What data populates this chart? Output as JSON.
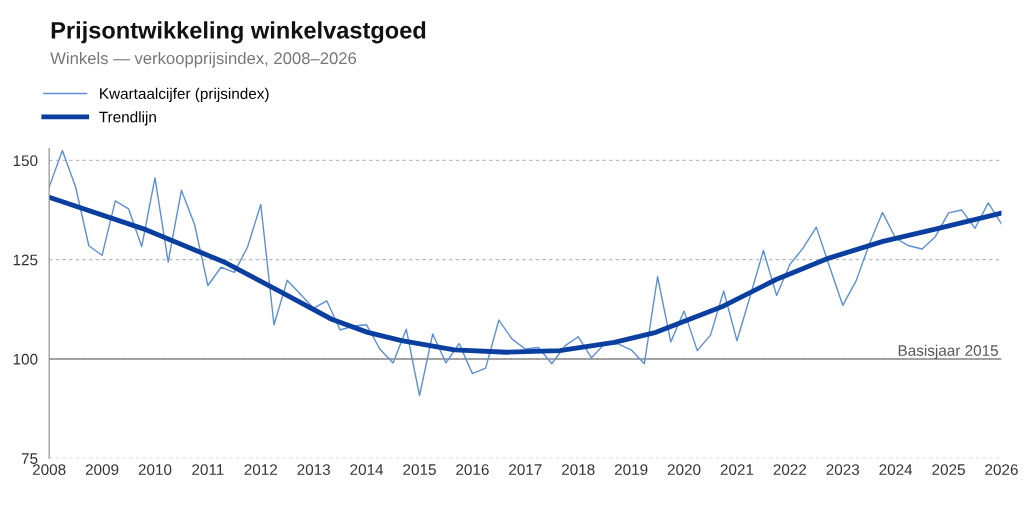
{
  "chart_data": {
    "type": "line",
    "title": "Prijsontwikkeling winkelvastgoed",
    "subtitle": "Winkels — verkoopprijsindex, 2008–2026",
    "series": [
      {
        "name": "Kwartaalcijfer (prijsindex)",
        "color": "#5b8fd6",
        "x": [
          2008,
          2008.25,
          2008.5,
          2008.75,
          2009,
          2009.25,
          2009.5,
          2009.75,
          2010,
          2010.25,
          2010.5,
          2010.75,
          2011,
          2011.25,
          2011.5,
          2011.75,
          2012,
          2012.25,
          2012.5,
          2012.75,
          2013,
          2013.25,
          2013.5,
          2013.75,
          2014,
          2014.25,
          2014.5,
          2014.75,
          2015,
          2015.25,
          2015.5,
          2015.75,
          2016,
          2016.25,
          2016.5,
          2016.75,
          2017,
          2017.25,
          2017.5,
          2017.75,
          2018,
          2018.25,
          2018.5,
          2018.75,
          2019,
          2019.25,
          2019.5,
          2019.75,
          2020,
          2020.25,
          2020.5,
          2020.75,
          2021,
          2021.25,
          2021.5,
          2021.75,
          2022,
          2022.25,
          2022.5,
          2022.75,
          2023,
          2023.25,
          2023.5,
          2023.75,
          2024,
          2024.25,
          2024.5,
          2024.75,
          2025,
          2025.25,
          2025.5,
          2025.75,
          2026
        ],
        "values": [
          143.3,
          152.5,
          143.3,
          128.5,
          126.1,
          139.8,
          137.8,
          128.3,
          145.6,
          124.4,
          142.5,
          133.8,
          118.5,
          123.1,
          121.8,
          128.2,
          138.9,
          108.6,
          119.8,
          116.3,
          112.8,
          114.6,
          107.3,
          108.3,
          108.6,
          102.5,
          99.0,
          107.5,
          90.8,
          106.3,
          99.0,
          103.9,
          96.3,
          97.7,
          109.8,
          105.0,
          102.5,
          102.9,
          98.8,
          103.3,
          105.6,
          100.3,
          103.8,
          103.8,
          102.3,
          98.8,
          120.7,
          104.3,
          112.1,
          102.1,
          106.0,
          117.1,
          104.6,
          115.8,
          127.3,
          116.0,
          123.8,
          127.9,
          133.2,
          123.3,
          113.5,
          119.6,
          128.8,
          136.9,
          130.4,
          128.5,
          127.7,
          130.8,
          136.8,
          137.5,
          132.9,
          139.3,
          134.0
        ]
      },
      {
        "name": "Trendlijn",
        "color": "#0a3fa0",
        "x": [
          2008,
          2009.84,
          2011.34,
          2012.35,
          2013.34,
          2014.02,
          2014.66,
          2015.66,
          2016.65,
          2017.65,
          2018.68,
          2019.47,
          2020.03,
          2020.74,
          2021.74,
          2022.74,
          2023.76,
          2024.75,
          2026
        ],
        "values": [
          140.7,
          132.5,
          124.2,
          117.1,
          110.0,
          106.7,
          104.6,
          102.3,
          101.7,
          102.1,
          104.2,
          106.7,
          109.6,
          113.3,
          120.0,
          125.4,
          129.6,
          132.7,
          136.7
        ]
      }
    ],
    "xlim": [
      2008,
      2026
    ],
    "xticks": [
      2008,
      2009,
      2010,
      2011,
      2012,
      2013,
      2014,
      2015,
      2016,
      2017,
      2018,
      2019,
      2020,
      2021,
      2022,
      2023,
      2024,
      2025,
      2026
    ],
    "ylim": [
      75,
      153
    ],
    "yticks": [
      75,
      100,
      125,
      150
    ],
    "grid": "y",
    "legend": "top left",
    "marker": "none",
    "line_style": "solid",
    "ref_lines": [
      {
        "axis": "y",
        "value": 100,
        "label": "Basisjaar 2015",
        "color": "#888888",
        "line_style": "solid"
      }
    ]
  }
}
